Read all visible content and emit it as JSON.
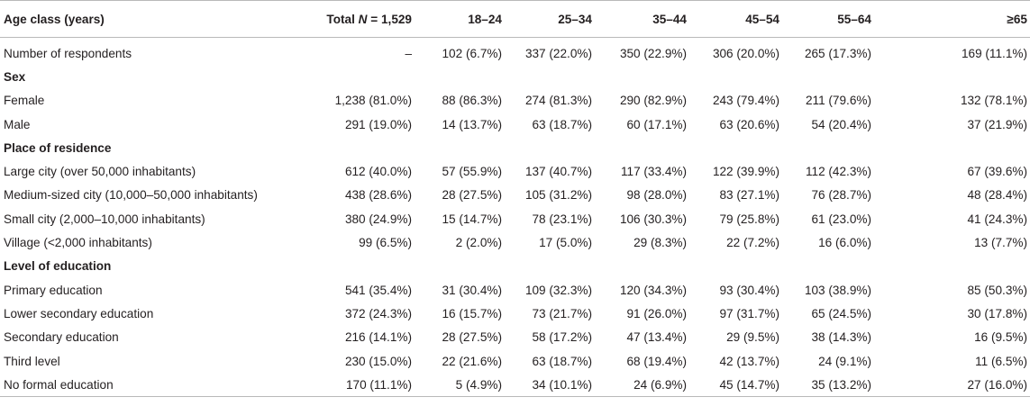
{
  "table": {
    "header": [
      "Age class (years)",
      {
        "parts": [
          "Total ",
          "N",
          " = 1,529"
        ]
      },
      "18–24",
      "25–34",
      "35–44",
      "45–54",
      "55–64",
      "≥65"
    ],
    "rows": [
      {
        "label": "Number of respondents",
        "cells": [
          "–",
          "102 (6.7%)",
          "337 (22.0%)",
          "350 (22.9%)",
          "306 (20.0%)",
          "265 (17.3%)",
          "169 (11.1%)"
        ]
      },
      {
        "section": "Sex"
      },
      {
        "label": "Female",
        "cells": [
          "1,238 (81.0%)",
          "88 (86.3%)",
          "274 (81.3%)",
          "290 (82.9%)",
          "243 (79.4%)",
          "211 (79.6%)",
          "132 (78.1%)"
        ]
      },
      {
        "label": "Male",
        "cells": [
          "291 (19.0%)",
          "14 (13.7%)",
          "63 (18.7%)",
          "60 (17.1%)",
          "63 (20.6%)",
          "54 (20.4%)",
          "37 (21.9%)"
        ]
      },
      {
        "section": "Place of residence"
      },
      {
        "label": "Large city (over 50,000 inhabitants)",
        "cells": [
          "612 (40.0%)",
          "57 (55.9%)",
          "137 (40.7%)",
          "117 (33.4%)",
          "122 (39.9%)",
          "112 (42.3%)",
          "67 (39.6%)"
        ]
      },
      {
        "label": "Medium-sized city (10,000–50,000 inhabitants)",
        "cells": [
          "438 (28.6%)",
          "28 (27.5%)",
          "105 (31.2%)",
          "98 (28.0%)",
          "83 (27.1%)",
          "76 (28.7%)",
          "48 (28.4%)"
        ]
      },
      {
        "label": "Small city (2,000–10,000 inhabitants)",
        "cells": [
          "380 (24.9%)",
          "15 (14.7%)",
          "78 (23.1%)",
          "106 (30.3%)",
          "79 (25.8%)",
          "61 (23.0%)",
          "41 (24.3%)"
        ]
      },
      {
        "label": "Village (<2,000 inhabitants)",
        "cells": [
          "99 (6.5%)",
          "2 (2.0%)",
          "17 (5.0%)",
          "29 (8.3%)",
          "22 (7.2%)",
          "16 (6.0%)",
          "13 (7.7%)"
        ]
      },
      {
        "section": "Level of education"
      },
      {
        "label": "Primary education",
        "cells": [
          "541 (35.4%)",
          "31 (30.4%)",
          "109 (32.3%)",
          "120 (34.3%)",
          "93 (30.4%)",
          "103 (38.9%)",
          "85 (50.3%)"
        ]
      },
      {
        "label": "Lower secondary education",
        "cells": [
          "372 (24.3%)",
          "16 (15.7%)",
          "73 (21.7%)",
          "91 (26.0%)",
          "97 (31.7%)",
          "65 (24.5%)",
          "30 (17.8%)"
        ]
      },
      {
        "label": "Secondary education",
        "cells": [
          "216 (14.1%)",
          "28 (27.5%)",
          "58 (17.2%)",
          "47 (13.4%)",
          "29 (9.5%)",
          "38 (14.3%)",
          "16 (9.5%)"
        ]
      },
      {
        "label": "Third level",
        "cells": [
          "230 (15.0%)",
          "22 (21.6%)",
          "63 (18.7%)",
          "68 (19.4%)",
          "42 (13.7%)",
          "24 (9.1%)",
          "11 (6.5%)"
        ]
      },
      {
        "label": "No formal education",
        "cells": [
          "170 (11.1%)",
          "5 (4.9%)",
          "34 (10.1%)",
          "24 (6.9%)",
          "45 (14.7%)",
          "35 (13.2%)",
          "27 (16.0%)"
        ]
      }
    ]
  }
}
